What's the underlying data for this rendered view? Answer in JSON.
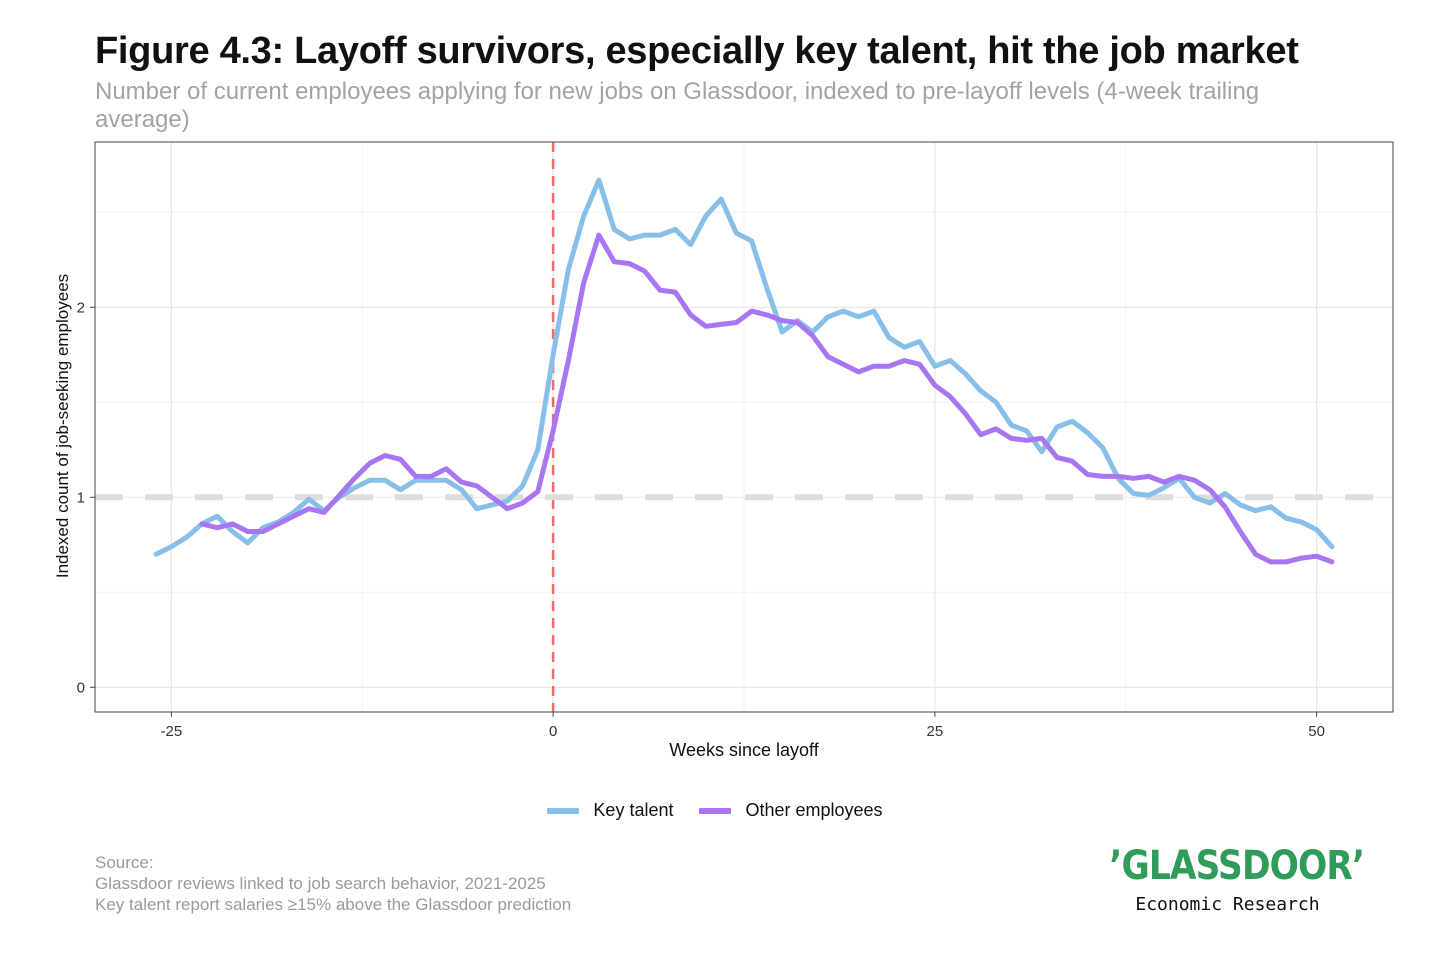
{
  "header": {
    "title": "Figure 4.3: Layoff survivors, especially key talent, hit the job market",
    "subtitle": "Number of current employees applying for new jobs on Glassdoor, indexed to pre-layoff levels (4-week trailing average)"
  },
  "chart_data": {
    "type": "line",
    "title": "Figure 4.3: Layoff survivors, especially key talent, hit the job market",
    "subtitle": "Number of current employees applying for new jobs on Glassdoor, indexed to pre-layoff levels (4-week trailing average)",
    "xlabel": "Weeks since layoff",
    "ylabel": "Indexed count of job-seeking employees",
    "xlim": [
      -30,
      55
    ],
    "ylim": [
      -0.13,
      2.87
    ],
    "xticks": [
      -25,
      0,
      25,
      50
    ],
    "yticks": [
      0,
      1,
      2
    ],
    "grid": true,
    "reference_lines": [
      {
        "axis": "x",
        "value": 0,
        "style": "dashed",
        "color": "#f06b6b"
      },
      {
        "axis": "y",
        "value": 1,
        "style": "dashed",
        "color": "#dddddd"
      }
    ],
    "legend_position": "bottom",
    "series": [
      {
        "name": "Key talent",
        "color": "#88bfe8",
        "x": [
          -26,
          -25,
          -24,
          -23,
          -22,
          -21,
          -20,
          -19,
          -18,
          -17,
          -16,
          -15,
          -14,
          -13,
          -12,
          -11,
          -10,
          -9,
          -8,
          -7,
          -6,
          -5,
          -4,
          -3,
          -2,
          -1,
          0,
          1,
          2,
          3,
          4,
          5,
          6,
          7,
          8,
          9,
          10,
          11,
          12,
          13,
          14,
          15,
          16,
          17,
          18,
          19,
          20,
          21,
          22,
          23,
          24,
          25,
          26,
          27,
          28,
          29,
          30,
          31,
          32,
          33,
          34,
          35,
          36,
          37,
          38,
          39,
          40,
          41,
          42,
          43,
          44,
          45,
          46,
          47,
          48,
          49,
          50,
          51
        ],
        "values": [
          0.7,
          0.74,
          0.79,
          0.86,
          0.9,
          0.82,
          0.76,
          0.84,
          0.87,
          0.92,
          0.99,
          0.93,
          1.0,
          1.05,
          1.09,
          1.09,
          1.04,
          1.09,
          1.09,
          1.09,
          1.04,
          0.94,
          0.96,
          0.98,
          1.06,
          1.25,
          1.75,
          2.2,
          2.48,
          2.67,
          2.41,
          2.36,
          2.38,
          2.38,
          2.41,
          2.33,
          2.48,
          2.57,
          2.39,
          2.35,
          2.1,
          1.87,
          1.93,
          1.87,
          1.95,
          1.98,
          1.95,
          1.98,
          1.84,
          1.79,
          1.82,
          1.69,
          1.72,
          1.65,
          1.56,
          1.5,
          1.38,
          1.35,
          1.24,
          1.37,
          1.4,
          1.34,
          1.26,
          1.1,
          1.02,
          1.01,
          1.05,
          1.1,
          1.0,
          0.97,
          1.02,
          0.96,
          0.93,
          0.95,
          0.89,
          0.87,
          0.83,
          0.74
        ]
      },
      {
        "name": "Other employees",
        "color": "#a876f3",
        "x": [
          -23,
          -22,
          -21,
          -20,
          -19,
          -18,
          -17,
          -16,
          -15,
          -14,
          -13,
          -12,
          -11,
          -10,
          -9,
          -8,
          -7,
          -6,
          -5,
          -4,
          -3,
          -2,
          -1,
          0,
          1,
          2,
          3,
          4,
          5,
          6,
          7,
          8,
          9,
          10,
          11,
          12,
          13,
          14,
          15,
          16,
          17,
          18,
          19,
          20,
          21,
          22,
          23,
          24,
          25,
          26,
          27,
          28,
          29,
          30,
          31,
          32,
          33,
          34,
          35,
          36,
          37,
          38,
          39,
          40,
          41,
          42,
          43,
          44,
          45,
          46,
          47,
          48,
          49,
          50,
          51
        ],
        "values": [
          0.86,
          0.84,
          0.86,
          0.82,
          0.82,
          0.86,
          0.9,
          0.94,
          0.92,
          1.01,
          1.1,
          1.18,
          1.22,
          1.2,
          1.11,
          1.11,
          1.15,
          1.08,
          1.06,
          1.0,
          0.94,
          0.97,
          1.03,
          1.35,
          1.72,
          2.13,
          2.38,
          2.24,
          2.23,
          2.19,
          2.09,
          2.08,
          1.96,
          1.9,
          1.91,
          1.92,
          1.98,
          1.96,
          1.93,
          1.92,
          1.85,
          1.74,
          1.7,
          1.66,
          1.69,
          1.69,
          1.72,
          1.7,
          1.59,
          1.53,
          1.44,
          1.33,
          1.36,
          1.31,
          1.3,
          1.31,
          1.21,
          1.19,
          1.12,
          1.11,
          1.11,
          1.1,
          1.11,
          1.08,
          1.11,
          1.09,
          1.04,
          0.95,
          0.82,
          0.7,
          0.66,
          0.66,
          0.68,
          0.69,
          0.66
        ]
      }
    ],
    "source_lines": [
      "Source:",
      "Glassdoor reviews linked to job search behavior, 2021-2025",
      "Key talent report salaries ≥15% above the Glassdoor prediction"
    ]
  },
  "legend": {
    "key_talent": "Key talent",
    "other_employees": "Other employees",
    "key_talent_color": "#88bfe8",
    "other_employees_color": "#a876f3"
  },
  "source": {
    "label": "Source:",
    "line1": "Glassdoor reviews linked to job search behavior, 2021-2025",
    "line2": "Key talent report salaries ≥15% above the Glassdoor prediction"
  },
  "branding": {
    "logo_text": "ʼGLASSDOORʼ",
    "tagline": "Economic Research",
    "brand_color": "#2f9c5a"
  }
}
